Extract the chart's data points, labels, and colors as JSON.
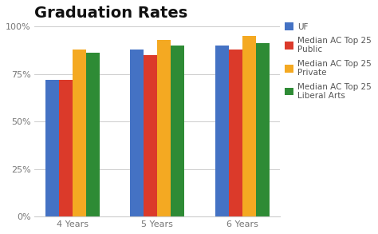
{
  "title": "Graduation Rates",
  "categories": [
    "4 Years",
    "5 Years",
    "6 Years"
  ],
  "series": [
    {
      "label": "UF",
      "color": "#4472C4",
      "values": [
        72,
        88,
        90
      ]
    },
    {
      "label": "Median AC Top 25\nPublic",
      "color": "#DB3A2A",
      "values": [
        72,
        85,
        88
      ]
    },
    {
      "label": "Median AC Top 25\nPrivate",
      "color": "#F4A922",
      "values": [
        88,
        93,
        95
      ]
    },
    {
      "label": "Median AC Top 25\nLiberal Arts",
      "color": "#2E8B35",
      "values": [
        86,
        90,
        91
      ]
    }
  ],
  "ylim": [
    0,
    100
  ],
  "yticks": [
    0,
    25,
    50,
    75,
    100
  ],
  "ytick_labels": [
    "0%",
    "25%",
    "50%",
    "75%",
    "100%"
  ],
  "title_fontsize": 14,
  "tick_fontsize": 8,
  "legend_fontsize": 7.5,
  "background_color": "#ffffff",
  "grid_color": "#cccccc"
}
